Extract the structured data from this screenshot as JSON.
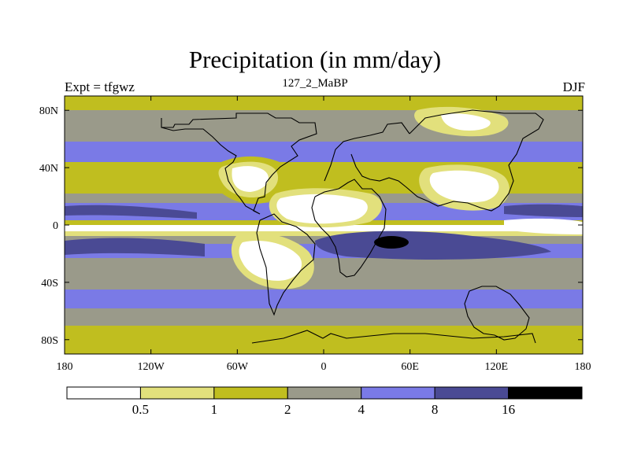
{
  "chart_data": {
    "type": "heatmap",
    "title": "Precipitation (in mm/day)",
    "left_label": "Expt = tfgwz",
    "center_label": "127_2_MaBP",
    "right_label": "DJF",
    "x_ticks": [
      {
        "value": -180,
        "label": "180"
      },
      {
        "value": -120,
        "label": "120W"
      },
      {
        "value": -60,
        "label": "60W"
      },
      {
        "value": 0,
        "label": "0"
      },
      {
        "value": 60,
        "label": "60E"
      },
      {
        "value": 120,
        "label": "120E"
      },
      {
        "value": 180,
        "label": "180"
      }
    ],
    "y_ticks": [
      {
        "value": 80,
        "label": "80N"
      },
      {
        "value": 40,
        "label": "40N"
      },
      {
        "value": 0,
        "label": "0"
      },
      {
        "value": -40,
        "label": "40S"
      },
      {
        "value": -80,
        "label": "80S"
      }
    ],
    "xlim": [
      -180,
      180
    ],
    "ylim": [
      -90,
      90
    ],
    "colorbar": {
      "levels": [
        "0.5",
        "1",
        "2",
        "4",
        "8",
        "16"
      ],
      "colors": [
        "#ffffff",
        "#e2e07c",
        "#c0be1f",
        "#9a9a8a",
        "#7a7ae6",
        "#4a4a94",
        "#000000"
      ]
    }
  }
}
